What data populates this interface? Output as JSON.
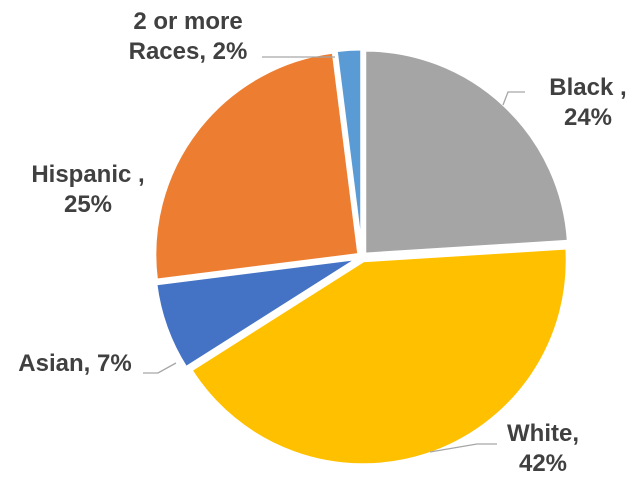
{
  "chart_data": {
    "type": "pie",
    "title": "",
    "start_angle_deg": 0,
    "direction": "clockwise",
    "slices": [
      {
        "label": "Black",
        "value": 24,
        "color": "#a5a5a5",
        "label_lines": [
          "Black ,",
          "24%"
        ]
      },
      {
        "label": "White",
        "value": 42,
        "color": "#ffc000",
        "label_lines": [
          "White,",
          "42%"
        ]
      },
      {
        "label": "Asian",
        "value": 7,
        "color": "#4472c4",
        "label_lines": [
          "Asian, 7%"
        ]
      },
      {
        "label": "Hispanic",
        "value": 25,
        "color": "#ed7d31",
        "label_lines": [
          "Hispanic ,",
          "25%"
        ]
      },
      {
        "label": "2 or more Races",
        "value": 2,
        "color": "#5b9bd5",
        "label_lines": [
          "2 or more",
          "Races, 2%"
        ]
      }
    ],
    "legend": "none",
    "data_labels": "outside-with-leader-lines"
  }
}
